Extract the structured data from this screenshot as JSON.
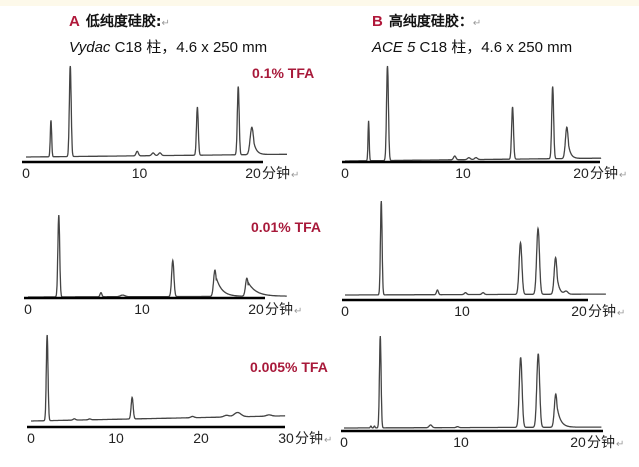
{
  "para_mark": "↵",
  "panels": {
    "A": {
      "letter": "A",
      "title": "低纯度硅胶:",
      "column_italic": "Vydac",
      "column_rest": " C18 柱，4.6 x 250 mm"
    },
    "B": {
      "letter": "B",
      "title": "高纯度硅胶：",
      "column_italic": "ACE 5",
      "column_rest": " C18 柱，4.6 x 250 mm"
    }
  },
  "conditions": [
    "0.1% TFA",
    "0.01% TFA",
    "0.005% TFA"
  ],
  "chart_data": [
    {
      "type": "line",
      "id": "A1",
      "column": "A",
      "condition": "0.1% TFA",
      "xlabel": "分钟",
      "xticks": [
        0,
        10,
        20
      ],
      "xlim": [
        0,
        23
      ],
      "peaks": [
        {
          "t": 2.2,
          "h": 40,
          "w": 0.06
        },
        {
          "t": 3.9,
          "h": 100,
          "w": 0.08
        },
        {
          "t": 9.8,
          "h": 5,
          "w": 0.1
        },
        {
          "t": 11.2,
          "h": 3,
          "w": 0.12
        },
        {
          "t": 11.8,
          "h": 3,
          "w": 0.12
        },
        {
          "t": 15.1,
          "h": 53,
          "w": 0.08
        },
        {
          "t": 18.7,
          "h": 75,
          "w": 0.08
        },
        {
          "t": 19.9,
          "h": 30,
          "w": 0.15,
          "tail": 0.25
        }
      ],
      "baseline_end": 3
    },
    {
      "type": "line",
      "id": "A2",
      "column": "A",
      "condition": "0.01% TFA",
      "xlabel": "分钟",
      "xticks": [
        0,
        10,
        20
      ],
      "xlim": [
        0,
        22.7
      ],
      "peaks": [
        {
          "t": 2.7,
          "h": 100,
          "w": 0.08
        },
        {
          "t": 6.4,
          "h": 5,
          "w": 0.08
        },
        {
          "t": 8.3,
          "h": 2,
          "w": 0.2
        },
        {
          "t": 12.7,
          "h": 44,
          "w": 0.1
        },
        {
          "t": 16.4,
          "h": 32,
          "w": 0.12,
          "tail": 0.5
        },
        {
          "t": 19.2,
          "h": 22,
          "w": 0.12,
          "tail": 0.7
        }
      ],
      "baseline_end": 1
    },
    {
      "type": "line",
      "id": "A3",
      "column": "A",
      "condition": "0.005% TFA",
      "xlabel": "分钟",
      "xticks": [
        0,
        10,
        20,
        30
      ],
      "xlim": [
        0,
        29.9
      ],
      "peaks": [
        {
          "t": 1.9,
          "h": 100,
          "w": 0.1
        },
        {
          "t": 5.1,
          "h": 1.5,
          "w": 0.15
        },
        {
          "t": 6.9,
          "h": 1,
          "w": 0.15
        },
        {
          "t": 11.9,
          "h": 25,
          "w": 0.12
        },
        {
          "t": 19.0,
          "h": 1.5,
          "w": 0.2
        },
        {
          "t": 23.0,
          "h": 2,
          "w": 0.3
        },
        {
          "t": 24.3,
          "h": 5,
          "w": 0.4
        },
        {
          "t": 28.0,
          "h": 1.5,
          "w": 0.3
        }
      ],
      "baseline_end": 6
    },
    {
      "type": "line",
      "id": "B1",
      "column": "B",
      "condition": "0.1% TFA",
      "xlabel": "分钟",
      "xticks": [
        0,
        10,
        20
      ],
      "xlim": [
        0,
        21.7
      ],
      "peaks": [
        {
          "t": 2.0,
          "h": 42,
          "w": 0.05
        },
        {
          "t": 3.6,
          "h": 100,
          "w": 0.08
        },
        {
          "t": 9.3,
          "h": 4,
          "w": 0.1
        },
        {
          "t": 10.5,
          "h": 2,
          "w": 0.12
        },
        {
          "t": 11.1,
          "h": 2,
          "w": 0.12
        },
        {
          "t": 14.2,
          "h": 55,
          "w": 0.08
        },
        {
          "t": 17.6,
          "h": 76,
          "w": 0.08
        },
        {
          "t": 18.8,
          "h": 33,
          "w": 0.12,
          "tail": 0.2
        }
      ],
      "baseline_end": 3
    },
    {
      "type": "line",
      "id": "B2",
      "column": "B",
      "condition": "0.01% TFA",
      "xlabel": "分钟",
      "xticks": [
        0,
        10,
        20
      ],
      "xlim": [
        0,
        22.3
      ],
      "peaks": [
        {
          "t": 3.1,
          "h": 100,
          "w": 0.07
        },
        {
          "t": 7.9,
          "h": 5,
          "w": 0.08
        },
        {
          "t": 10.3,
          "h": 2,
          "w": 0.1
        },
        {
          "t": 11.8,
          "h": 2,
          "w": 0.1
        },
        {
          "t": 15.0,
          "h": 55,
          "w": 0.12
        },
        {
          "t": 16.5,
          "h": 70,
          "w": 0.12
        },
        {
          "t": 18.0,
          "h": 39,
          "w": 0.12,
          "tail": 0.2
        },
        {
          "t": 18.9,
          "h": 3,
          "w": 0.15
        }
      ],
      "baseline_end": 1
    },
    {
      "type": "line",
      "id": "B3",
      "column": "B",
      "condition": "0.005% TFA",
      "xlabel": "分钟",
      "xticks": [
        0,
        10,
        20
      ],
      "xlim": [
        0,
        22
      ],
      "peaks": [
        {
          "t": 2.3,
          "h": 2,
          "w": 0.05
        },
        {
          "t": 2.6,
          "h": 2,
          "w": 0.05
        },
        {
          "t": 3.1,
          "h": 100,
          "w": 0.07
        },
        {
          "t": 7.4,
          "h": 3,
          "w": 0.12
        },
        {
          "t": 9.7,
          "h": 1,
          "w": 0.1
        },
        {
          "t": 15.1,
          "h": 76,
          "w": 0.12
        },
        {
          "t": 16.6,
          "h": 80,
          "w": 0.12
        },
        {
          "t": 18.1,
          "h": 36,
          "w": 0.12,
          "tail": 0.3
        }
      ],
      "baseline_end": 1
    }
  ]
}
